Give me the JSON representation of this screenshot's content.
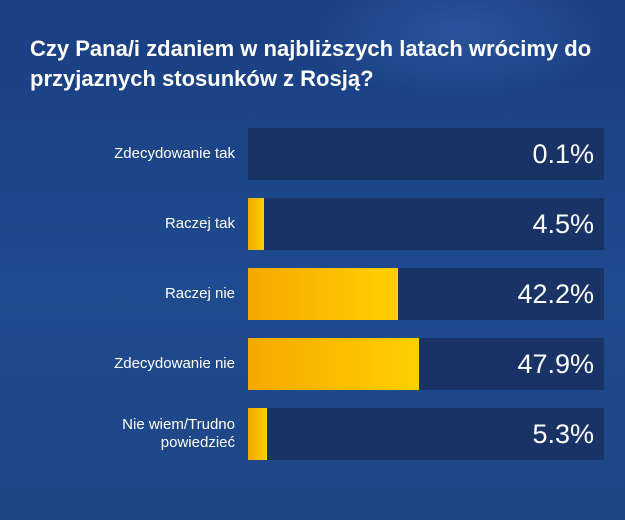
{
  "title": "Czy Pana/i zdaniem w najbliższych latach wrócimy do przyjaznych stosunków z Rosją?",
  "colors": {
    "background": "#1e4a8f",
    "track": "#1a3367",
    "bar_start": "#f5a800",
    "bar_end": "#ffd000",
    "text": "#ffffff"
  },
  "chart_data": {
    "type": "bar",
    "orientation": "horizontal",
    "title": "Czy Pana/i zdaniem w najbliższych latach wrócimy do przyjaznych stosunków z Rosją?",
    "categories": [
      "Zdecydowanie tak",
      "Raczej tak",
      "Raczej nie",
      "Zdecydowanie nie",
      "Nie wiem/Trudno powiedzieć"
    ],
    "values": [
      0.1,
      4.5,
      42.2,
      47.9,
      5.3
    ],
    "value_labels": [
      "0.1%",
      "4.5%",
      "42.2%",
      "47.9%",
      "5.3%"
    ],
    "unit": "%",
    "xlim": [
      0,
      100
    ],
    "grid": false,
    "legend": "none"
  }
}
